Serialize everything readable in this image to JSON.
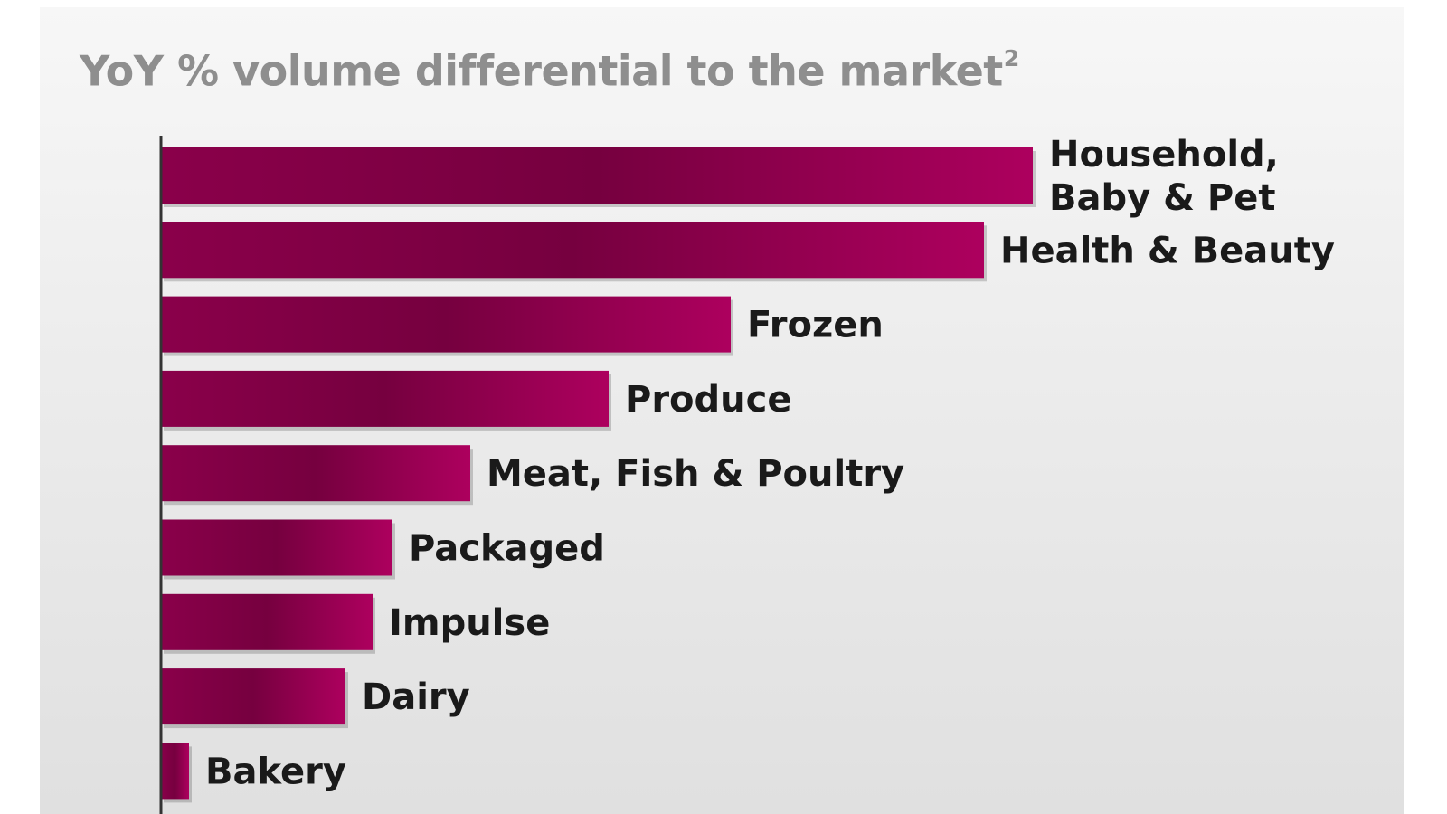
{
  "colors": {
    "bar_dark": "#7a0040",
    "bar_light": "#a8005c",
    "title": "#8e8e8e",
    "label": "#1a1a1a",
    "axis": "#333333"
  },
  "chart_data": {
    "type": "bar",
    "orientation": "horizontal",
    "title": "YoY % volume differential to the market",
    "title_superscript": "2",
    "categories": [
      "Household, Baby & Pet",
      "Health & Beauty",
      "Frozen",
      "Produce",
      "Meat, Fish & Poultry",
      "Packaged",
      "Impulse",
      "Dairy",
      "Bakery"
    ],
    "category_lines": [
      [
        "Household,",
        "Baby & Pet"
      ],
      [
        "Health & Beauty"
      ],
      [
        "Frozen"
      ],
      [
        "Produce"
      ],
      [
        "Meat, Fish & Poultry"
      ],
      [
        "Packaged"
      ],
      [
        "Impulse"
      ],
      [
        "Dairy"
      ],
      [
        "Bakery"
      ]
    ],
    "values": [
      96.4,
      91,
      63,
      49.5,
      34.2,
      25.6,
      23.4,
      20.4,
      3.1
    ],
    "xlim": [
      0,
      100
    ],
    "xlabel": "",
    "ylabel": "",
    "grid": false,
    "legend": "none"
  }
}
